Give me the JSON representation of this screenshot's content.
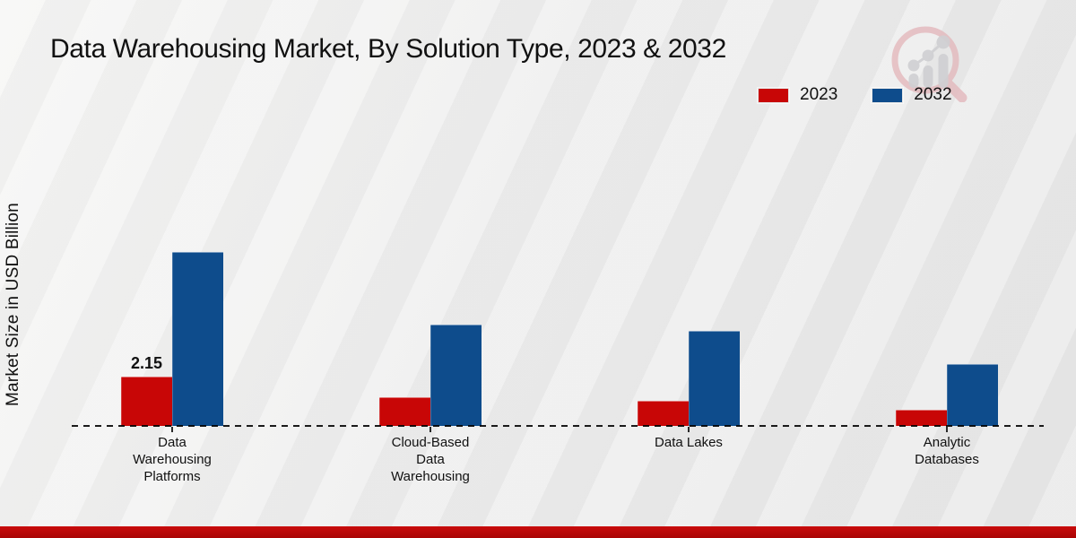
{
  "title": "Data Warehousing Market, By Solution Type, 2023 & 2032",
  "watermark_icon": "magnifier-bar-chart-logo",
  "footer": {
    "color": "#b20707"
  },
  "chart_data": {
    "type": "bar",
    "title": "Data Warehousing Market, By Solution Type, 2023 & 2032",
    "ylabel": "Market Size in USD Billion",
    "xlabel": "",
    "categories": [
      "Data Warehousing Platforms",
      "Cloud-Based Data Warehousing",
      "Data Lakes",
      "Analytic Databases"
    ],
    "category_label_lines": [
      [
        "Data",
        "Warehousing",
        "Platforms"
      ],
      [
        "Cloud-Based",
        "Data",
        "Warehousing"
      ],
      [
        "Data Lakes"
      ],
      [
        "Analytic",
        "Databases"
      ]
    ],
    "series": [
      {
        "name": "2023",
        "color": "#c80606",
        "values": [
          2.15,
          1.25,
          1.1,
          0.7
        ]
      },
      {
        "name": "2032",
        "color": "#0e4c8c",
        "values": [
          7.6,
          4.4,
          4.15,
          2.7
        ]
      }
    ],
    "annotations": [
      {
        "category_index": 0,
        "series": "2023",
        "text": "2.15"
      }
    ],
    "ylim": [
      0,
      8
    ],
    "grid": false,
    "axis_style": "dashed-baseline-only",
    "legend_position": "top-right"
  }
}
